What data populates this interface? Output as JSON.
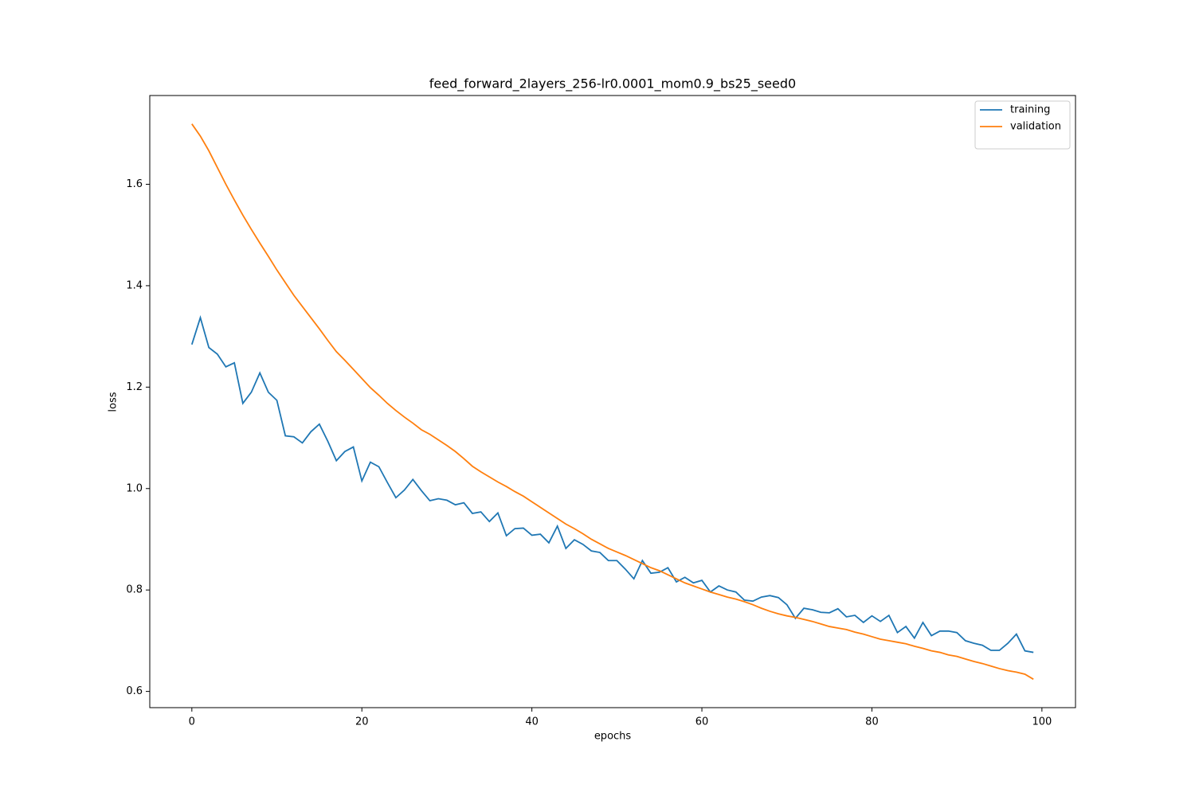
{
  "chart_data": {
    "type": "line",
    "title": "feed_forward_2layers_256-lr0.0001_mom0.9_bs25_seed0",
    "xlabel": "epochs",
    "ylabel": "loss",
    "x": [
      0,
      1,
      2,
      3,
      4,
      5,
      6,
      7,
      8,
      9,
      10,
      11,
      12,
      13,
      14,
      15,
      16,
      17,
      18,
      19,
      20,
      21,
      22,
      23,
      24,
      25,
      26,
      27,
      28,
      29,
      30,
      31,
      32,
      33,
      34,
      35,
      36,
      37,
      38,
      39,
      40,
      41,
      42,
      43,
      44,
      45,
      46,
      47,
      48,
      49,
      50,
      51,
      52,
      53,
      54,
      55,
      56,
      57,
      58,
      59,
      60,
      61,
      62,
      63,
      64,
      65,
      66,
      67,
      68,
      69,
      70,
      71,
      72,
      73,
      74,
      75,
      76,
      77,
      78,
      79,
      80,
      81,
      82,
      83,
      84,
      85,
      86,
      87,
      88,
      89,
      90,
      91,
      92,
      93,
      94,
      95,
      96,
      97,
      98,
      99
    ],
    "series": [
      {
        "name": "training",
        "color": "#1f77b4",
        "values": [
          1.284,
          1.337,
          1.278,
          1.265,
          1.24,
          1.248,
          1.168,
          1.19,
          1.228,
          1.19,
          1.174,
          1.104,
          1.102,
          1.09,
          1.112,
          1.127,
          1.093,
          1.055,
          1.073,
          1.082,
          1.015,
          1.052,
          1.043,
          1.012,
          0.982,
          0.997,
          1.018,
          0.996,
          0.976,
          0.98,
          0.977,
          0.968,
          0.972,
          0.951,
          0.954,
          0.935,
          0.952,
          0.907,
          0.921,
          0.922,
          0.908,
          0.91,
          0.893,
          0.926,
          0.882,
          0.899,
          0.89,
          0.877,
          0.874,
          0.858,
          0.858,
          0.841,
          0.822,
          0.858,
          0.833,
          0.835,
          0.844,
          0.816,
          0.825,
          0.814,
          0.819,
          0.796,
          0.808,
          0.8,
          0.796,
          0.78,
          0.778,
          0.786,
          0.789,
          0.785,
          0.771,
          0.744,
          0.764,
          0.761,
          0.756,
          0.755,
          0.763,
          0.747,
          0.75,
          0.736,
          0.749,
          0.738,
          0.75,
          0.716,
          0.728,
          0.705,
          0.736,
          0.71,
          0.719,
          0.719,
          0.716,
          0.7,
          0.695,
          0.691,
          0.681,
          0.681,
          0.695,
          0.713,
          0.68,
          0.677
        ]
      },
      {
        "name": "validation",
        "color": "#ff7f0e",
        "values": [
          1.719,
          1.695,
          1.666,
          1.633,
          1.6,
          1.569,
          1.539,
          1.511,
          1.484,
          1.458,
          1.431,
          1.406,
          1.381,
          1.359,
          1.337,
          1.315,
          1.292,
          1.27,
          1.253,
          1.235,
          1.217,
          1.199,
          1.184,
          1.168,
          1.154,
          1.141,
          1.129,
          1.116,
          1.107,
          1.096,
          1.085,
          1.073,
          1.059,
          1.044,
          1.033,
          1.023,
          1.013,
          1.004,
          0.994,
          0.985,
          0.974,
          0.963,
          0.952,
          0.941,
          0.93,
          0.921,
          0.911,
          0.9,
          0.891,
          0.882,
          0.875,
          0.868,
          0.86,
          0.852,
          0.844,
          0.838,
          0.83,
          0.822,
          0.814,
          0.808,
          0.802,
          0.796,
          0.791,
          0.786,
          0.782,
          0.777,
          0.771,
          0.764,
          0.758,
          0.753,
          0.749,
          0.746,
          0.742,
          0.738,
          0.733,
          0.728,
          0.725,
          0.722,
          0.717,
          0.713,
          0.708,
          0.703,
          0.7,
          0.697,
          0.694,
          0.689,
          0.685,
          0.68,
          0.677,
          0.672,
          0.669,
          0.664,
          0.659,
          0.655,
          0.65,
          0.645,
          0.641,
          0.638,
          0.634,
          0.624
        ]
      }
    ],
    "xlim": [
      -4.95,
      103.95
    ],
    "ylim": [
      0.568,
      1.775
    ],
    "xticks": [
      0,
      20,
      40,
      60,
      80,
      100
    ],
    "yticks": [
      0.6,
      0.8,
      {
        "value": 1,
        "label": "1.0"
      },
      1.2,
      1.4,
      1.6
    ],
    "legend": "upper right"
  }
}
